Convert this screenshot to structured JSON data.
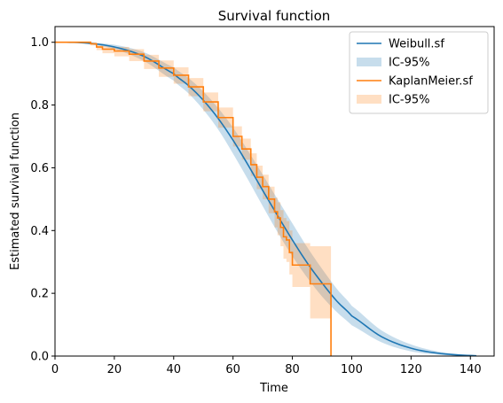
{
  "chart_data": {
    "type": "line",
    "title": "Survival function",
    "xlabel": "Time",
    "ylabel": "Estimated survival function",
    "xlim": [
      0,
      148
    ],
    "ylim": [
      0,
      1.05
    ],
    "xticks": [
      0,
      20,
      40,
      60,
      80,
      100,
      120,
      140
    ],
    "yticks": [
      0.0,
      0.2,
      0.4,
      0.6,
      0.8,
      1.0
    ],
    "grid": false,
    "legend_position": "top-right",
    "colors": {
      "weibull": "#1f77b4",
      "kaplan_meier": "#ff7f0e"
    },
    "legend": [
      {
        "label": "Weibull.sf",
        "kind": "line",
        "series": "weibull"
      },
      {
        "label": "IC-95%",
        "kind": "band",
        "series": "weibull"
      },
      {
        "label": "KaplanMeier.sf",
        "kind": "line",
        "series": "kaplan_meier"
      },
      {
        "label": "IC-95%",
        "kind": "band",
        "series": "kaplan_meier"
      }
    ],
    "series": [
      {
        "name": "Weibull.sf",
        "key": "weibull",
        "style": "smooth",
        "x": [
          0,
          10,
          20,
          30,
          40,
          45,
          50,
          55,
          60,
          65,
          70,
          75,
          80,
          85,
          90,
          95,
          100,
          110,
          120,
          130,
          142
        ],
        "y": [
          1.0,
          0.998,
          0.985,
          0.955,
          0.9,
          0.862,
          0.815,
          0.757,
          0.688,
          0.61,
          0.528,
          0.448,
          0.37,
          0.297,
          0.233,
          0.175,
          0.128,
          0.062,
          0.025,
          0.008,
          0.001
        ],
        "ci_lower": [
          1.0,
          0.996,
          0.978,
          0.94,
          0.878,
          0.837,
          0.785,
          0.722,
          0.645,
          0.563,
          0.478,
          0.395,
          0.318,
          0.25,
          0.19,
          0.14,
          0.098,
          0.044,
          0.015,
          0.004,
          0.0
        ],
        "ci_upper": [
          1.0,
          0.999,
          0.992,
          0.968,
          0.92,
          0.886,
          0.843,
          0.79,
          0.728,
          0.655,
          0.578,
          0.5,
          0.423,
          0.347,
          0.278,
          0.214,
          0.16,
          0.082,
          0.037,
          0.013,
          0.002
        ]
      },
      {
        "name": "KaplanMeier.sf",
        "key": "kaplan_meier",
        "style": "step",
        "x": [
          0,
          12,
          14,
          16,
          20,
          25,
          30,
          35,
          40,
          45,
          50,
          55,
          60,
          63,
          66,
          68,
          70,
          72,
          74,
          75,
          76,
          77,
          78,
          79,
          80,
          85,
          86,
          93,
          93.01
        ],
        "y": [
          1.0,
          0.995,
          0.985,
          0.978,
          0.972,
          0.962,
          0.94,
          0.918,
          0.895,
          0.858,
          0.81,
          0.76,
          0.7,
          0.66,
          0.61,
          0.57,
          0.54,
          0.5,
          0.46,
          0.44,
          0.41,
          0.38,
          0.37,
          0.33,
          0.29,
          0.29,
          0.23,
          0.23,
          0.0
        ],
        "ci_lower": [
          1.0,
          0.99,
          0.975,
          0.965,
          0.955,
          0.94,
          0.915,
          0.89,
          0.868,
          0.828,
          0.78,
          0.728,
          0.668,
          0.626,
          0.574,
          0.532,
          0.5,
          0.455,
          0.41,
          0.385,
          0.35,
          0.31,
          0.3,
          0.26,
          0.22,
          0.22,
          0.12,
          0.12,
          0.12
        ],
        "ci_upper": [
          1.0,
          1.0,
          0.99,
          0.988,
          0.985,
          0.978,
          0.96,
          0.942,
          0.92,
          0.886,
          0.84,
          0.792,
          0.732,
          0.693,
          0.646,
          0.607,
          0.578,
          0.54,
          0.505,
          0.49,
          0.465,
          0.44,
          0.43,
          0.4,
          0.36,
          0.36,
          0.35,
          0.35,
          0.35
        ]
      }
    ]
  }
}
